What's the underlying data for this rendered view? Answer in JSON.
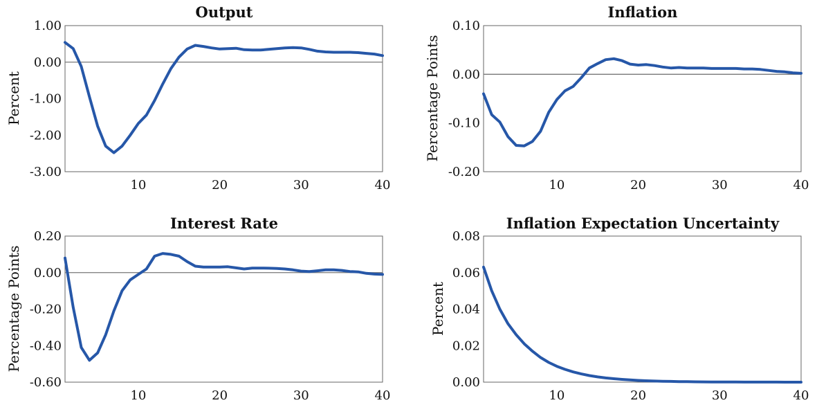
{
  "chart_data": [
    {
      "type": "line",
      "title": "Output",
      "ylabel": "Percent",
      "xlabel": "",
      "xlim": [
        1,
        40
      ],
      "ylim": [
        -3.0,
        1.0
      ],
      "xticks": [
        10,
        20,
        30,
        40
      ],
      "xtick_labels": [
        "10",
        "20",
        "30",
        "40"
      ],
      "yticks": [
        -3.0,
        -2.0,
        -1.0,
        0.0,
        1.0
      ],
      "ytick_labels": [
        "-3.00",
        "-2.00",
        "-1.00",
        "0.00",
        "1.00"
      ],
      "zero_line": true,
      "x": [
        1,
        2,
        3,
        4,
        5,
        6,
        7,
        8,
        9,
        10,
        11,
        12,
        13,
        14,
        15,
        16,
        17,
        18,
        19,
        20,
        21,
        22,
        23,
        24,
        25,
        26,
        27,
        28,
        29,
        30,
        31,
        32,
        33,
        34,
        35,
        36,
        37,
        38,
        39,
        40
      ],
      "values": [
        0.54,
        0.37,
        -0.12,
        -0.95,
        -1.75,
        -2.3,
        -2.48,
        -2.3,
        -2.0,
        -1.68,
        -1.45,
        -1.05,
        -0.6,
        -0.18,
        0.14,
        0.36,
        0.46,
        0.43,
        0.39,
        0.36,
        0.37,
        0.38,
        0.34,
        0.33,
        0.33,
        0.35,
        0.37,
        0.39,
        0.4,
        0.39,
        0.35,
        0.3,
        0.28,
        0.27,
        0.27,
        0.27,
        0.26,
        0.24,
        0.22,
        0.18
      ],
      "color": "#2657a8"
    },
    {
      "type": "line",
      "title": "Inflation",
      "ylabel": "Percentage Points",
      "xlabel": "",
      "xlim": [
        1,
        40
      ],
      "ylim": [
        -0.2,
        0.1
      ],
      "xticks": [
        10,
        20,
        30,
        40
      ],
      "xtick_labels": [
        "10",
        "20",
        "30",
        "40"
      ],
      "yticks": [
        -0.2,
        -0.1,
        0.0,
        0.1
      ],
      "ytick_labels": [
        "-0.20",
        "-0.10",
        "0.00",
        "0.10"
      ],
      "zero_line": true,
      "x": [
        1,
        2,
        3,
        4,
        5,
        6,
        7,
        8,
        9,
        10,
        11,
        12,
        13,
        14,
        15,
        16,
        17,
        18,
        19,
        20,
        21,
        22,
        23,
        24,
        25,
        26,
        27,
        28,
        29,
        30,
        31,
        32,
        33,
        34,
        35,
        36,
        37,
        38,
        39,
        40
      ],
      "values": [
        -0.04,
        -0.083,
        -0.098,
        -0.128,
        -0.146,
        -0.147,
        -0.138,
        -0.117,
        -0.078,
        -0.052,
        -0.034,
        -0.025,
        -0.007,
        0.013,
        0.022,
        0.03,
        0.032,
        0.028,
        0.021,
        0.019,
        0.02,
        0.018,
        0.015,
        0.013,
        0.014,
        0.013,
        0.013,
        0.013,
        0.012,
        0.012,
        0.012,
        0.012,
        0.011,
        0.011,
        0.01,
        0.008,
        0.006,
        0.005,
        0.003,
        0.002
      ],
      "color": "#2657a8"
    },
    {
      "type": "line",
      "title": "Interest Rate",
      "ylabel": "Percentage Points",
      "xlabel": "",
      "xlim": [
        1,
        40
      ],
      "ylim": [
        -0.6,
        0.2
      ],
      "xticks": [
        10,
        20,
        30,
        40
      ],
      "xtick_labels": [
        "10",
        "20",
        "30",
        "40"
      ],
      "yticks": [
        -0.6,
        -0.4,
        -0.2,
        0.0,
        0.2
      ],
      "ytick_labels": [
        "-0.60",
        "-0.40",
        "-0.20",
        "0.00",
        "0.20"
      ],
      "zero_line": true,
      "x": [
        1,
        2,
        3,
        4,
        5,
        6,
        7,
        8,
        9,
        10,
        11,
        12,
        13,
        14,
        15,
        16,
        17,
        18,
        19,
        20,
        21,
        22,
        23,
        24,
        25,
        26,
        27,
        28,
        29,
        30,
        31,
        32,
        33,
        34,
        35,
        36,
        37,
        38,
        39,
        40
      ],
      "values": [
        0.08,
        -0.19,
        -0.41,
        -0.48,
        -0.44,
        -0.34,
        -0.21,
        -0.1,
        -0.04,
        -0.01,
        0.02,
        0.09,
        0.105,
        0.1,
        0.09,
        0.06,
        0.035,
        0.03,
        0.03,
        0.03,
        0.032,
        0.026,
        0.02,
        0.025,
        0.025,
        0.024,
        0.023,
        0.02,
        0.015,
        0.008,
        0.006,
        0.01,
        0.015,
        0.015,
        0.012,
        0.006,
        0.004,
        -0.004,
        -0.008,
        -0.01
      ],
      "color": "#2657a8"
    },
    {
      "type": "line",
      "title": "Inflation Expectation Uncertainty",
      "ylabel": "Percent",
      "xlabel": "",
      "xlim": [
        1,
        40
      ],
      "ylim": [
        0.0,
        0.08
      ],
      "xticks": [
        10,
        20,
        30,
        40
      ],
      "xtick_labels": [
        "10",
        "20",
        "30",
        "40"
      ],
      "yticks": [
        0.0,
        0.02,
        0.04,
        0.06,
        0.08
      ],
      "ytick_labels": [
        "0.00",
        "0.02",
        "0.04",
        "0.06",
        "0.08"
      ],
      "zero_line": false,
      "x": [
        1,
        2,
        3,
        4,
        5,
        6,
        7,
        8,
        9,
        10,
        11,
        12,
        13,
        14,
        15,
        16,
        17,
        18,
        19,
        20,
        21,
        22,
        23,
        24,
        25,
        26,
        27,
        28,
        29,
        30,
        31,
        32,
        33,
        34,
        35,
        36,
        37,
        38,
        39,
        40
      ],
      "values": [
        0.063,
        0.05,
        0.04,
        0.032,
        0.026,
        0.021,
        0.017,
        0.0135,
        0.0108,
        0.0087,
        0.007,
        0.0056,
        0.0045,
        0.0036,
        0.0029,
        0.0023,
        0.0019,
        0.0015,
        0.0012,
        0.00095,
        0.00076,
        0.0006,
        0.0005,
        0.0004,
        0.0003,
        0.00025,
        0.0002,
        0.00016,
        0.00013,
        0.0001,
        8e-05,
        6e-05,
        5e-05,
        4e-05,
        3e-05,
        2e-05,
        2e-05,
        1e-05,
        1e-05,
        1e-05
      ],
      "color": "#2657a8"
    }
  ]
}
